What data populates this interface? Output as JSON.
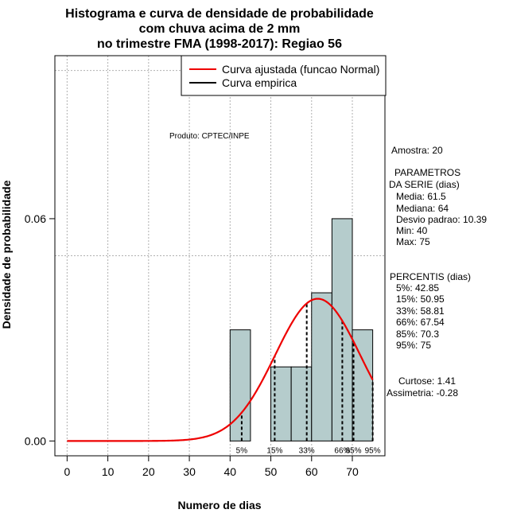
{
  "chart_data": {
    "type": "histogram",
    "title": [
      "Histograma e curva de densidade de probabilidade",
      "com chuva acima de 2 mm",
      "no trimestre FMA (1998-2017): Regiao 56"
    ],
    "xlabel": "Numero de dias",
    "ylabel": "Densidade de probabilidade",
    "xlim": [
      -3,
      78
    ],
    "ylim": [
      -0.004,
      0.104
    ],
    "x_ticks": [
      0,
      10,
      20,
      30,
      40,
      50,
      60,
      70
    ],
    "y_ticks": [
      0.0,
      0.06
    ],
    "y_tick_labels": [
      "0.00",
      "0.06"
    ],
    "grid": true,
    "grid_x": [
      0,
      10,
      20,
      30,
      40,
      50,
      60,
      70
    ],
    "grid_y": [
      0.05,
      0.1
    ],
    "bars": [
      {
        "x0": 40,
        "x1": 45,
        "density": 0.03
      },
      {
        "x0": 45,
        "x1": 50,
        "density": 0.0
      },
      {
        "x0": 50,
        "x1": 55,
        "density": 0.02
      },
      {
        "x0": 55,
        "x1": 60,
        "density": 0.02
      },
      {
        "x0": 60,
        "x1": 65,
        "density": 0.04
      },
      {
        "x0": 65,
        "x1": 70,
        "density": 0.06
      },
      {
        "x0": 70,
        "x1": 75,
        "density": 0.03
      }
    ],
    "bar_color": "#b5cccc",
    "normal_curve": {
      "mean": 61.5,
      "sd": 10.39,
      "x_range": [
        0,
        75
      ],
      "color": "#ee0000"
    },
    "percentile_lines": [
      {
        "label": "5%",
        "x": 42.85
      },
      {
        "label": "15%",
        "x": 50.95
      },
      {
        "label": "33%",
        "x": 58.81
      },
      {
        "label": "66%",
        "x": 67.54
      },
      {
        "label": "85%",
        "x": 70.3
      },
      {
        "label": "95%",
        "x": 75
      }
    ],
    "legend": {
      "placement": "top-right",
      "entries": [
        {
          "label": "Curva ajustada (funcao Normal)",
          "color": "#ee0000"
        },
        {
          "label": "Curva empirica",
          "color": "#000000"
        }
      ]
    },
    "annotation": "Produto: CPTEC/INPE"
  },
  "stats": {
    "sample": "Amostra: 20",
    "params_title": [
      "PARAMETROS",
      "DA SERIE (dias)"
    ],
    "params": [
      "Media: 61.5",
      "Mediana: 64",
      "Desvio padrao: 10.39",
      "Min: 40",
      "Max: 75"
    ],
    "percentis_title": "PERCENTIS (dias)",
    "percentis": [
      "5%: 42.85",
      "15%: 50.95",
      "33%: 58.81",
      "66%: 67.54",
      "85%: 70.3",
      "95%: 75"
    ],
    "curtose": "Curtose: 1.41",
    "assimetria": "Assimetria: -0.28"
  }
}
